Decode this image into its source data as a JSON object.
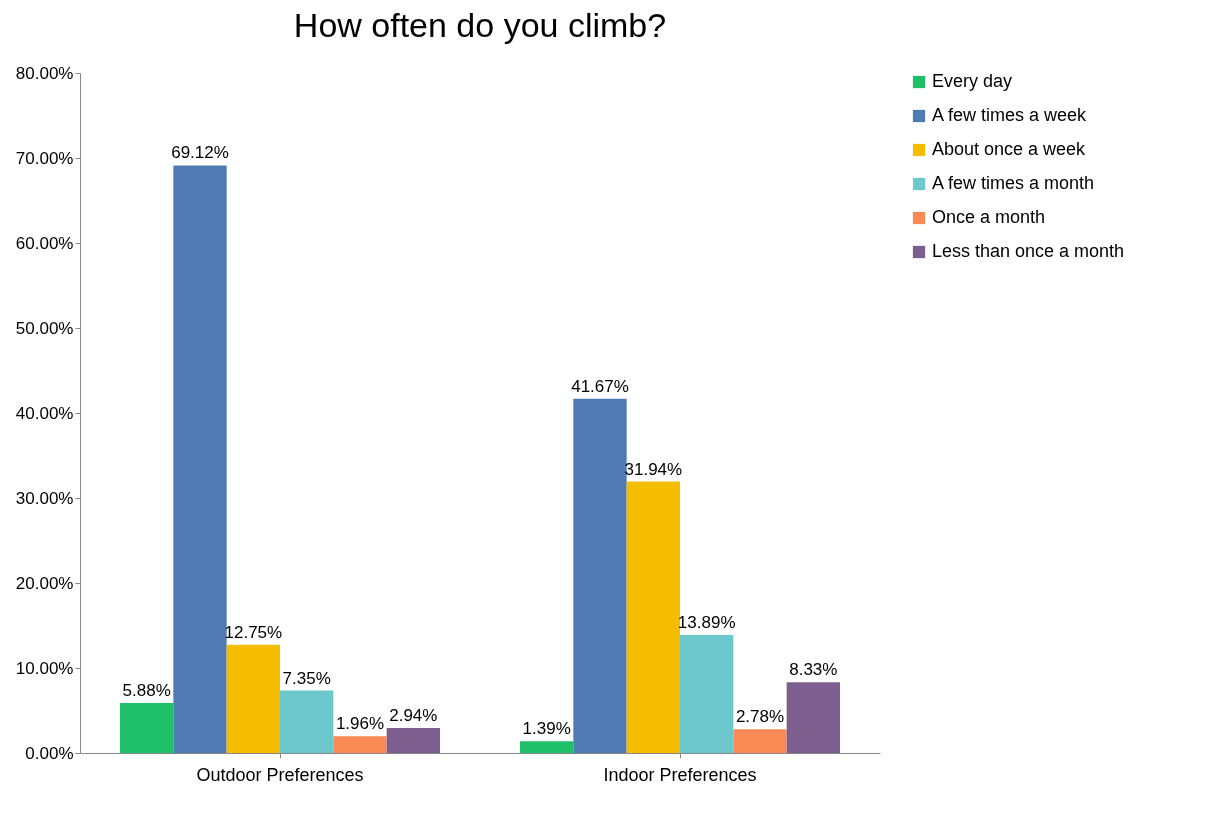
{
  "chart_data": {
    "type": "bar",
    "title": "How often do you climb?",
    "categories": [
      "Outdoor Preferences",
      "Indoor Preferences"
    ],
    "series": [
      {
        "name": "Every day",
        "color": "#1fbf6a",
        "values": [
          5.88,
          1.39
        ],
        "value_labels": [
          "5.88%",
          "1.39%"
        ]
      },
      {
        "name": "A few times a week",
        "color": "#4f7ab3",
        "values": [
          69.12,
          41.67
        ],
        "value_labels": [
          "69.12%",
          "41.67%"
        ]
      },
      {
        "name": "About once a week",
        "color": "#f5bd00",
        "values": [
          12.75,
          31.94
        ],
        "value_labels": [
          "12.75%",
          "31.94%"
        ]
      },
      {
        "name": "A few times a month",
        "color": "#6cc8cc",
        "values": [
          7.35,
          13.89
        ],
        "value_labels": [
          "7.35%",
          "13.89%"
        ]
      },
      {
        "name": "Once a month",
        "color": "#f98a55",
        "values": [
          1.96,
          2.78
        ],
        "value_labels": [
          "1.96%",
          "2.78%"
        ]
      },
      {
        "name": "Less than once a month",
        "color": "#7d5f8f",
        "values": [
          2.94,
          8.33
        ],
        "value_labels": [
          "2.94%",
          "8.33%"
        ]
      }
    ],
    "ylim": [
      0,
      80
    ],
    "yticks": [
      {
        "value": 0,
        "label": "0.00%"
      },
      {
        "value": 10,
        "label": "10.00%"
      },
      {
        "value": 20,
        "label": "20.00%"
      },
      {
        "value": 30,
        "label": "30.00%"
      },
      {
        "value": 40,
        "label": "40.00%"
      },
      {
        "value": 50,
        "label": "50.00%"
      },
      {
        "value": 60,
        "label": "60.00%"
      },
      {
        "value": 70,
        "label": "70.00%"
      },
      {
        "value": 80,
        "label": "80.00%"
      }
    ],
    "grid": false,
    "legend": "right"
  }
}
